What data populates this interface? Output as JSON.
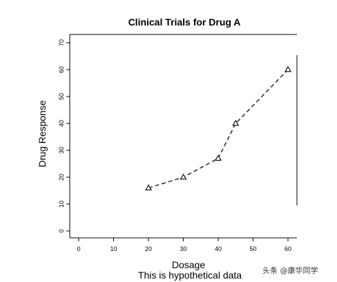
{
  "chart_data": {
    "type": "line",
    "title": "Clinical Trials for Drug A",
    "xlabel": "Dosage",
    "ylabel": "Drug Response",
    "subtitle": "This is hypothetical data",
    "xlim": [
      0,
      60
    ],
    "ylim": [
      0,
      70
    ],
    "x_ticks": [
      "0",
      "10",
      "20",
      "30",
      "40",
      "50",
      "60"
    ],
    "y_ticks": [
      "0",
      "10",
      "20",
      "30",
      "40",
      "50",
      "60",
      "70"
    ],
    "grid": false,
    "line_style": "dashed",
    "marker": "open-triangle",
    "series": [
      {
        "x": [
          20,
          30,
          40,
          45,
          60
        ],
        "y": [
          16,
          20,
          27,
          40,
          60
        ]
      }
    ]
  },
  "watermark": "头条 @康华同学"
}
